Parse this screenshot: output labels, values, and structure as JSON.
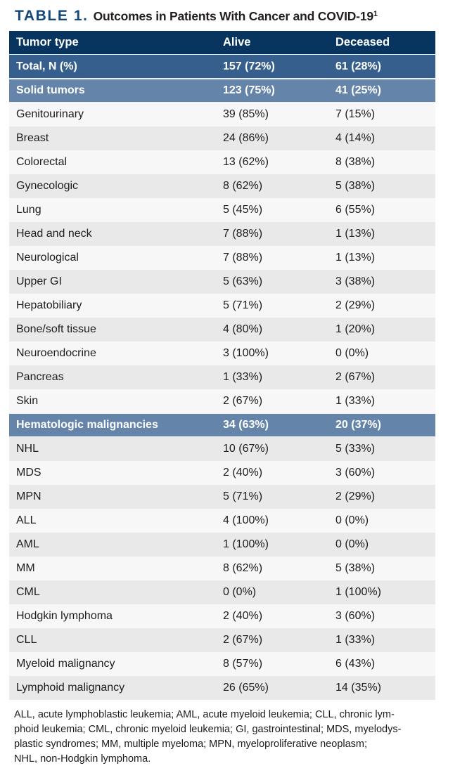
{
  "title": {
    "label": "TABLE 1.",
    "caption": "Outcomes in Patients With Cancer and COVID-19",
    "superscript": "1"
  },
  "colors": {
    "title_navy": "#16477c",
    "header_navy": "#083460",
    "total_blue": "#365f8e",
    "section_blue": "#6584aa",
    "row_light": "#f7f7f7",
    "row_shaded": "#e9e9e9",
    "page_background": "#ffffff"
  },
  "table": {
    "columns": [
      "Tumor type",
      "Alive",
      "Deceased"
    ],
    "rows": [
      {
        "tumor_type": "Total, N (%)",
        "alive": "157 (72%)",
        "deceased": "61 (28%)",
        "variant": "total"
      },
      {
        "tumor_type": "Solid tumors",
        "alive": "123 (75%)",
        "deceased": "41 (25%)",
        "variant": "section"
      },
      {
        "tumor_type": "Genitourinary",
        "alive": "39 (85%)",
        "deceased": "7 (15%)",
        "variant": "light"
      },
      {
        "tumor_type": "Breast",
        "alive": "24 (86%)",
        "deceased": "4 (14%)",
        "variant": "shaded"
      },
      {
        "tumor_type": "Colorectal",
        "alive": "13 (62%)",
        "deceased": "8 (38%)",
        "variant": "light"
      },
      {
        "tumor_type": "Gynecologic",
        "alive": "8 (62%)",
        "deceased": "5 (38%)",
        "variant": "shaded"
      },
      {
        "tumor_type": "Lung",
        "alive": "5 (45%)",
        "deceased": "6 (55%)",
        "variant": "light"
      },
      {
        "tumor_type": "Head and neck",
        "alive": "7 (88%)",
        "deceased": "1 (13%)",
        "variant": "shaded"
      },
      {
        "tumor_type": "Neurological",
        "alive": "7 (88%)",
        "deceased": "1 (13%)",
        "variant": "light"
      },
      {
        "tumor_type": "Upper GI",
        "alive": "5 (63%)",
        "deceased": "3 (38%)",
        "variant": "shaded"
      },
      {
        "tumor_type": "Hepatobiliary",
        "alive": "5 (71%)",
        "deceased": "2 (29%)",
        "variant": "light"
      },
      {
        "tumor_type": "Bone/soft tissue",
        "alive": "4 (80%)",
        "deceased": "1 (20%)",
        "variant": "shaded"
      },
      {
        "tumor_type": "Neuroendocrine",
        "alive": "3 (100%)",
        "deceased": "0 (0%)",
        "variant": "light"
      },
      {
        "tumor_type": "Pancreas",
        "alive": "1 (33%)",
        "deceased": "2 (67%)",
        "variant": "shaded"
      },
      {
        "tumor_type": "Skin",
        "alive": "2 (67%)",
        "deceased": "1 (33%)",
        "variant": "light"
      },
      {
        "tumor_type": "Hematologic malignancies",
        "alive": "34 (63%)",
        "deceased": "20 (37%)",
        "variant": "section"
      },
      {
        "tumor_type": "NHL",
        "alive": "10 (67%)",
        "deceased": "5 (33%)",
        "variant": "shaded"
      },
      {
        "tumor_type": "MDS",
        "alive": "2 (40%)",
        "deceased": "3 (60%)",
        "variant": "light"
      },
      {
        "tumor_type": "MPN",
        "alive": "5 (71%)",
        "deceased": "2 (29%)",
        "variant": "shaded"
      },
      {
        "tumor_type": "ALL",
        "alive": "4 (100%)",
        "deceased": "0 (0%)",
        "variant": "light"
      },
      {
        "tumor_type": "AML",
        "alive": "1 (100%)",
        "deceased": "0 (0%)",
        "variant": "shaded"
      },
      {
        "tumor_type": "MM",
        "alive": "8 (62%)",
        "deceased": "5 (38%)",
        "variant": "light"
      },
      {
        "tumor_type": "CML",
        "alive": "0 (0%)",
        "deceased": "1 (100%)",
        "variant": "shaded"
      },
      {
        "tumor_type": "Hodgkin lymphoma",
        "alive": "2 (40%)",
        "deceased": "3 (60%)",
        "variant": "light"
      },
      {
        "tumor_type": "CLL",
        "alive": "2 (67%)",
        "deceased": "1 (33%)",
        "variant": "shaded"
      },
      {
        "tumor_type": "Myeloid malignancy",
        "alive": "8 (57%)",
        "deceased": "6 (43%)",
        "variant": "light"
      },
      {
        "tumor_type": "Lymphoid malignancy",
        "alive": "26 (65%)",
        "deceased": "14 (35%)",
        "variant": "shaded"
      }
    ]
  },
  "footnote": {
    "lines": [
      "ALL, acute lymphoblastic leukemia; AML, acute myeloid leukemia; CLL, chronic lym-",
      "phoid leukemia; CML, chronic myeloid leukemia; GI, gastrointestinal; MDS, myelodys-",
      "plastic syndromes; MM, multiple myeloma; MPN, myeloproliferative neoplasm;",
      "NHL, non-Hodgkin lymphoma."
    ]
  }
}
